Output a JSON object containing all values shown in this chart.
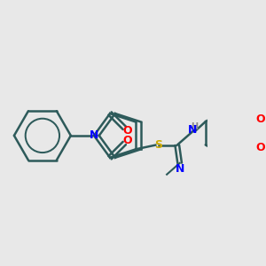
{
  "background_color": "#e8e8e8",
  "bond_color": "#2d5a5a",
  "atom_colors": {
    "N": "#0000ff",
    "O": "#ff0000",
    "S": "#ccaa00",
    "H": "#888888",
    "C": "#2d5a5a"
  },
  "figsize": [
    3.0,
    3.0
  ],
  "dpi": 100
}
